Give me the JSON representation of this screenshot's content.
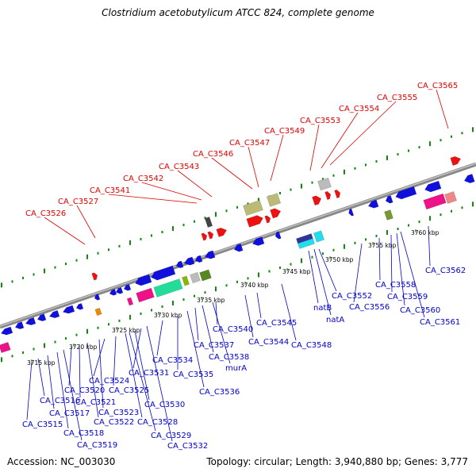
{
  "title": "Clostridium acetobutylicum ATCC 824, complete genome",
  "footer": {
    "accession": "Accession: NC_003030",
    "genome_info": "Topology: circular; Length: 3,940,880 bp; Genes: 3,777"
  },
  "colors": {
    "forward_label": "#e00000",
    "reverse_label": "#0000cc",
    "backbone": "#888888",
    "dots": "#118811"
  },
  "ticks": [
    "3715 kbp",
    "3720 kbp",
    "3725 kbp",
    "3730 kbp",
    "3735 kbp",
    "3740 kbp",
    "3745 kbp",
    "3750 kbp",
    "3755 kbp",
    "3760 kbp"
  ],
  "forward_labels": [
    "CA_C3526",
    "CA_C3527",
    "CA_C3541",
    "CA_C3542",
    "CA_C3543",
    "CA_C3546",
    "CA_C3547",
    "CA_C3549",
    "CA_C3553",
    "CA_C3554",
    "CA_C3555",
    "CA_C3565"
  ],
  "reverse_labels": [
    "CA_C3515",
    "CA_C3516",
    "CA_C3517",
    "CA_C3518",
    "CA_C3519",
    "CA_C3520",
    "CA_C3521",
    "CA_C3522",
    "CA_C3523",
    "CA_C3524",
    "CA_C3525",
    "CA_C3528",
    "CA_C3529",
    "CA_C3530",
    "CA_C3531",
    "CA_C3532",
    "CA_C3534",
    "CA_C3535",
    "CA_C3536",
    "CA_C3537",
    "CA_C3538",
    "murA",
    "CA_C3540",
    "CA_C3544",
    "CA_C3545",
    "CA_C3548",
    "natB",
    "natA",
    "CA_C3552",
    "CA_C3556",
    "CA_C3558",
    "CA_C3559",
    "CA_C3560",
    "CA_C3561",
    "CA_C3562"
  ]
}
